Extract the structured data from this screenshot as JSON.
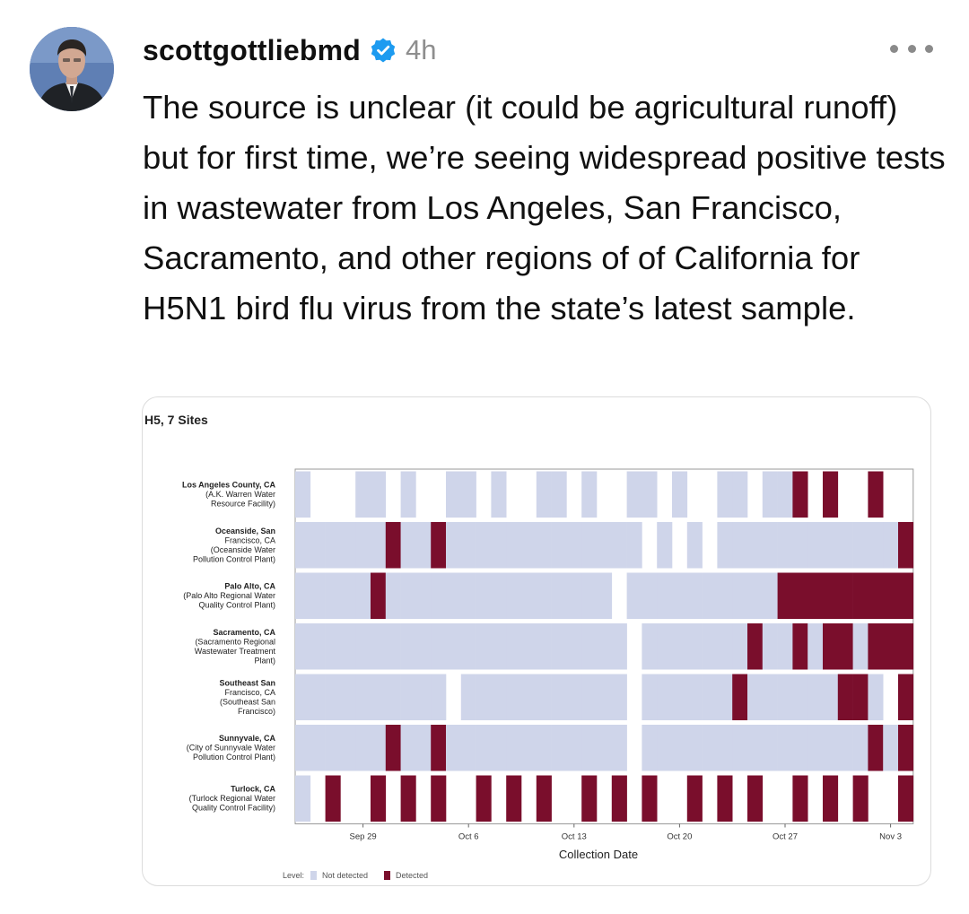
{
  "post": {
    "username": "scottgottliebmd",
    "timestamp": "4h",
    "text": "The source is unclear (it could be agricultural runoff) but for first time, we’re seeing widespread positive tests in wastewater from Los Angeles, San Francisco, Sacramento, and other regions of of California for H5N1 bird flu virus from the state’s latest sample."
  },
  "colors": {
    "not_detected": "#cfd5ea",
    "detected": "#7a0e2c",
    "verified_badge": "#1d9bf0"
  },
  "icons": {
    "verified": "verified-badge-icon",
    "more": "more-options-icon"
  },
  "chart_data": {
    "type": "heatmap",
    "title": "H5, 7 Sites",
    "xlabel": "Collection Date",
    "x_ticks": [
      "Sep 29",
      "Oct 6",
      "Oct 13",
      "Oct 20",
      "Oct 27",
      "Nov 3"
    ],
    "legend": {
      "title": "Level:",
      "items": [
        "Not detected",
        "Detected"
      ],
      "placement": "bottom-left"
    },
    "date_range": [
      "Sep 25",
      "Nov 4"
    ],
    "levels_key": "0 = not detected, 1 = detected, null = no sample",
    "sites": [
      {
        "name": "Los Angeles County, CA",
        "detail": [
          "(A.K. Warren Water",
          "Resource Facility)"
        ],
        "levels": [
          0,
          null,
          null,
          null,
          0,
          0,
          null,
          0,
          null,
          null,
          0,
          0,
          null,
          0,
          null,
          null,
          0,
          0,
          null,
          0,
          null,
          null,
          0,
          0,
          null,
          0,
          null,
          null,
          0,
          0,
          null,
          0,
          0,
          1,
          null,
          1,
          null,
          null,
          1,
          null,
          null
        ]
      },
      {
        "name": "Oceanside, San",
        "detail": [
          "Francisco, CA",
          "(Oceanside Water",
          "Pollution Control Plant)"
        ],
        "levels": [
          0,
          0,
          0,
          0,
          0,
          0,
          1,
          0,
          0,
          1,
          0,
          0,
          0,
          0,
          0,
          0,
          0,
          0,
          0,
          0,
          0,
          0,
          0,
          null,
          0,
          null,
          0,
          null,
          0,
          0,
          0,
          0,
          0,
          0,
          0,
          0,
          0,
          0,
          0,
          0,
          1
        ]
      },
      {
        "name": "Palo Alto, CA",
        "detail": [
          "(Palo Alto Regional Water",
          "Quality Control Plant)"
        ],
        "levels": [
          0,
          0,
          0,
          0,
          0,
          1,
          0,
          0,
          0,
          0,
          0,
          0,
          0,
          0,
          0,
          0,
          0,
          0,
          0,
          0,
          0,
          null,
          0,
          0,
          0,
          0,
          0,
          0,
          0,
          0,
          0,
          0,
          1,
          1,
          1,
          1,
          1,
          1,
          1,
          1,
          1
        ]
      },
      {
        "name": "Sacramento, CA",
        "detail": [
          "(Sacramento Regional",
          "Wastewater Treatment",
          "Plant)"
        ],
        "levels": [
          0,
          0,
          0,
          0,
          0,
          0,
          0,
          0,
          0,
          0,
          0,
          0,
          0,
          0,
          0,
          0,
          0,
          0,
          0,
          0,
          0,
          0,
          null,
          0,
          0,
          0,
          0,
          0,
          0,
          0,
          1,
          0,
          0,
          1,
          0,
          1,
          1,
          0,
          1,
          1,
          1
        ]
      },
      {
        "name": "Southeast San",
        "detail": [
          "Francisco, CA",
          "(Southeast San",
          "Francisco)"
        ],
        "levels": [
          0,
          0,
          0,
          0,
          0,
          0,
          0,
          0,
          0,
          0,
          null,
          0,
          0,
          0,
          0,
          0,
          0,
          0,
          0,
          0,
          0,
          0,
          null,
          0,
          0,
          0,
          0,
          0,
          0,
          1,
          0,
          0,
          0,
          0,
          0,
          0,
          1,
          1,
          0,
          null,
          1
        ]
      },
      {
        "name": "Sunnyvale, CA",
        "detail": [
          "(City of Sunnyvale Water",
          "Pollution Control Plant)"
        ],
        "levels": [
          0,
          0,
          0,
          0,
          0,
          0,
          1,
          0,
          0,
          1,
          0,
          0,
          0,
          0,
          0,
          0,
          0,
          0,
          0,
          0,
          0,
          0,
          null,
          0,
          0,
          0,
          0,
          0,
          0,
          0,
          0,
          0,
          0,
          0,
          0,
          0,
          0,
          0,
          1,
          0,
          1
        ]
      },
      {
        "name": "Turlock, CA",
        "detail": [
          "(Turlock Regional Water",
          "Quality Control Facility)"
        ],
        "levels": [
          0,
          null,
          1,
          null,
          null,
          1,
          null,
          1,
          null,
          1,
          null,
          null,
          1,
          null,
          1,
          null,
          1,
          null,
          null,
          1,
          null,
          1,
          null,
          1,
          null,
          null,
          1,
          null,
          1,
          null,
          1,
          null,
          null,
          1,
          null,
          1,
          null,
          1,
          null,
          null,
          1
        ]
      }
    ]
  }
}
